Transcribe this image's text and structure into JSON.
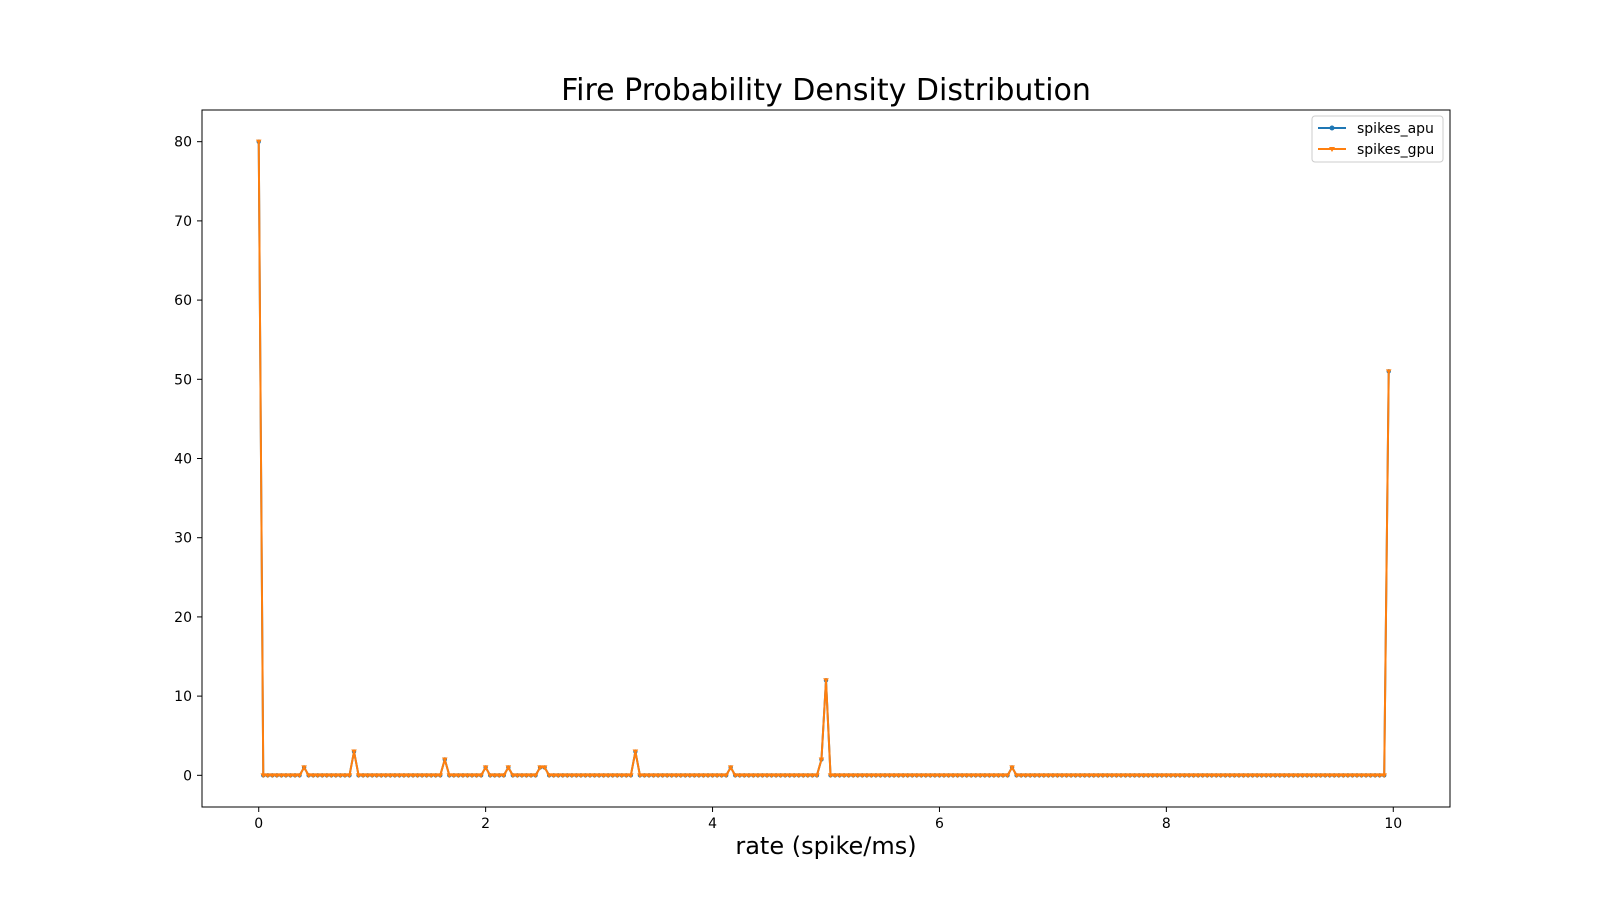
{
  "chart_data": {
    "type": "line",
    "title": "Fire Probability Density Distribution",
    "xlabel": "rate (spike/ms)",
    "ylabel": "",
    "xlim": [
      -0.5,
      10.5
    ],
    "ylim": [
      -4,
      84
    ],
    "xticks": [
      0,
      2,
      4,
      6,
      8,
      10
    ],
    "yticks": [
      0,
      10,
      20,
      30,
      40,
      50,
      60,
      70,
      80
    ],
    "grid": false,
    "legend_position": "top-right",
    "x_step": 0.04,
    "n_points": 250,
    "baseline": 0,
    "peaks": [
      {
        "x": 0.0,
        "y": 80
      },
      {
        "x": 0.4,
        "y": 1
      },
      {
        "x": 0.84,
        "y": 3
      },
      {
        "x": 1.64,
        "y": 2
      },
      {
        "x": 2.0,
        "y": 1
      },
      {
        "x": 2.2,
        "y": 1
      },
      {
        "x": 2.48,
        "y": 1
      },
      {
        "x": 2.52,
        "y": 1
      },
      {
        "x": 3.32,
        "y": 3
      },
      {
        "x": 4.16,
        "y": 1
      },
      {
        "x": 4.96,
        "y": 2
      },
      {
        "x": 5.0,
        "y": 12
      },
      {
        "x": 6.64,
        "y": 1
      },
      {
        "x": 9.96,
        "y": 51
      }
    ],
    "series": [
      {
        "name": "spikes_apu",
        "color": "#1f77b4",
        "marker": "point"
      },
      {
        "name": "spikes_gpu",
        "color": "#ff7f0e",
        "marker": "tri_down"
      }
    ]
  }
}
